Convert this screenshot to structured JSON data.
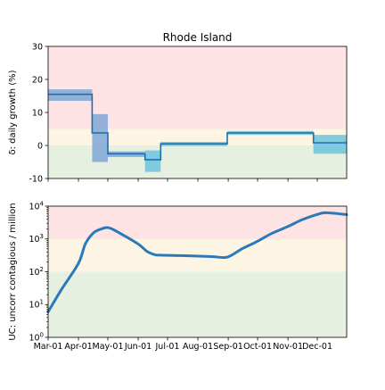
{
  "chart_data": [
    {
      "type": "line",
      "title": "Rhode Island",
      "ylabel": "δ: daily growth (%)",
      "xlabel": "",
      "ylim": [
        -10,
        30
      ],
      "yticks": [
        -10,
        0,
        10,
        20,
        30
      ],
      "xlim": [
        "2020-03-01",
        "2020-12-31"
      ],
      "grid": false,
      "zones": [
        {
          "from": -10,
          "to": 0,
          "color": "#e6f0e1"
        },
        {
          "from": 0,
          "to": 5,
          "color": "#fdf5e3"
        },
        {
          "from": 5,
          "to": 30,
          "color": "#fde3e4"
        }
      ],
      "line_color": "#1f6fb0",
      "band_color_early": "#7fa7d6",
      "band_color_late": "#6cc3de",
      "segments": [
        {
          "start": "2020-03-01",
          "end": "2020-04-15",
          "value": 15.5,
          "lo": 13.5,
          "hi": 17.0
        },
        {
          "start": "2020-04-15",
          "end": "2020-05-01",
          "value": 3.8,
          "lo": -5.0,
          "hi": 9.5
        },
        {
          "start": "2020-05-01",
          "end": "2020-06-08",
          "value": -2.5,
          "lo": -3.5,
          "hi": -1.8
        },
        {
          "start": "2020-06-08",
          "end": "2020-06-24",
          "value": -4.3,
          "lo": -8.0,
          "hi": -1.5
        },
        {
          "start": "2020-06-24",
          "end": "2020-08-31",
          "value": 0.5,
          "lo": -0.2,
          "hi": 1.1
        },
        {
          "start": "2020-08-31",
          "end": "2020-11-27",
          "value": 3.8,
          "lo": 3.2,
          "hi": 4.4
        },
        {
          "start": "2020-11-27",
          "end": "2020-12-31",
          "value": 0.8,
          "lo": -2.5,
          "hi": 3.2
        }
      ]
    },
    {
      "type": "line",
      "title": "",
      "ylabel": "UC: uncorr contagious / million",
      "xlabel": "",
      "yscale": "log",
      "ylim": [
        1,
        10000
      ],
      "yticks": [
        {
          "value": 1,
          "base": "10",
          "exp": "0"
        },
        {
          "value": 10,
          "base": "10",
          "exp": "1"
        },
        {
          "value": 100,
          "base": "10",
          "exp": "2"
        },
        {
          "value": 1000,
          "base": "10",
          "exp": "3"
        },
        {
          "value": 10000,
          "base": "10",
          "exp": "4"
        }
      ],
      "xlim": [
        "2020-03-01",
        "2020-12-31"
      ],
      "xticks": [
        {
          "date": "2020-03-01",
          "label": "Mar-01"
        },
        {
          "date": "2020-04-01",
          "label": "Apr-01"
        },
        {
          "date": "2020-05-01",
          "label": "May-01"
        },
        {
          "date": "2020-06-01",
          "label": "Jun-01"
        },
        {
          "date": "2020-07-01",
          "label": "Jul-01"
        },
        {
          "date": "2020-08-01",
          "label": "Aug-01"
        },
        {
          "date": "2020-09-01",
          "label": "Sep-01"
        },
        {
          "date": "2020-10-01",
          "label": "Oct-01"
        },
        {
          "date": "2020-11-01",
          "label": "Nov-01"
        },
        {
          "date": "2020-12-01",
          "label": "Dec-01"
        }
      ],
      "grid": false,
      "zones": [
        {
          "from": 1,
          "to": 100,
          "color": "#e6f0e1"
        },
        {
          "from": 100,
          "to": 1000,
          "color": "#fdf5e3"
        },
        {
          "from": 1000,
          "to": 10000,
          "color": "#fde3e4"
        }
      ],
      "line_color": "#2a7ab9",
      "series": [
        {
          "x": [
            "2020-03-01",
            "2020-03-15",
            "2020-04-01",
            "2020-04-08",
            "2020-04-16",
            "2020-04-24",
            "2020-05-02",
            "2020-05-15",
            "2020-06-01",
            "2020-06-10",
            "2020-06-18",
            "2020-06-24",
            "2020-07-15",
            "2020-08-15",
            "2020-08-31",
            "2020-09-15",
            "2020-10-01",
            "2020-10-15",
            "2020-11-01",
            "2020-11-15",
            "2020-12-01",
            "2020-12-10",
            "2020-12-31"
          ],
          "y": [
            6,
            30,
            180,
            700,
            1500,
            2000,
            2200,
            1400,
            700,
            420,
            330,
            320,
            310,
            290,
            280,
            500,
            850,
            1450,
            2400,
            3800,
            5600,
            6300,
            5500
          ]
        }
      ]
    }
  ]
}
